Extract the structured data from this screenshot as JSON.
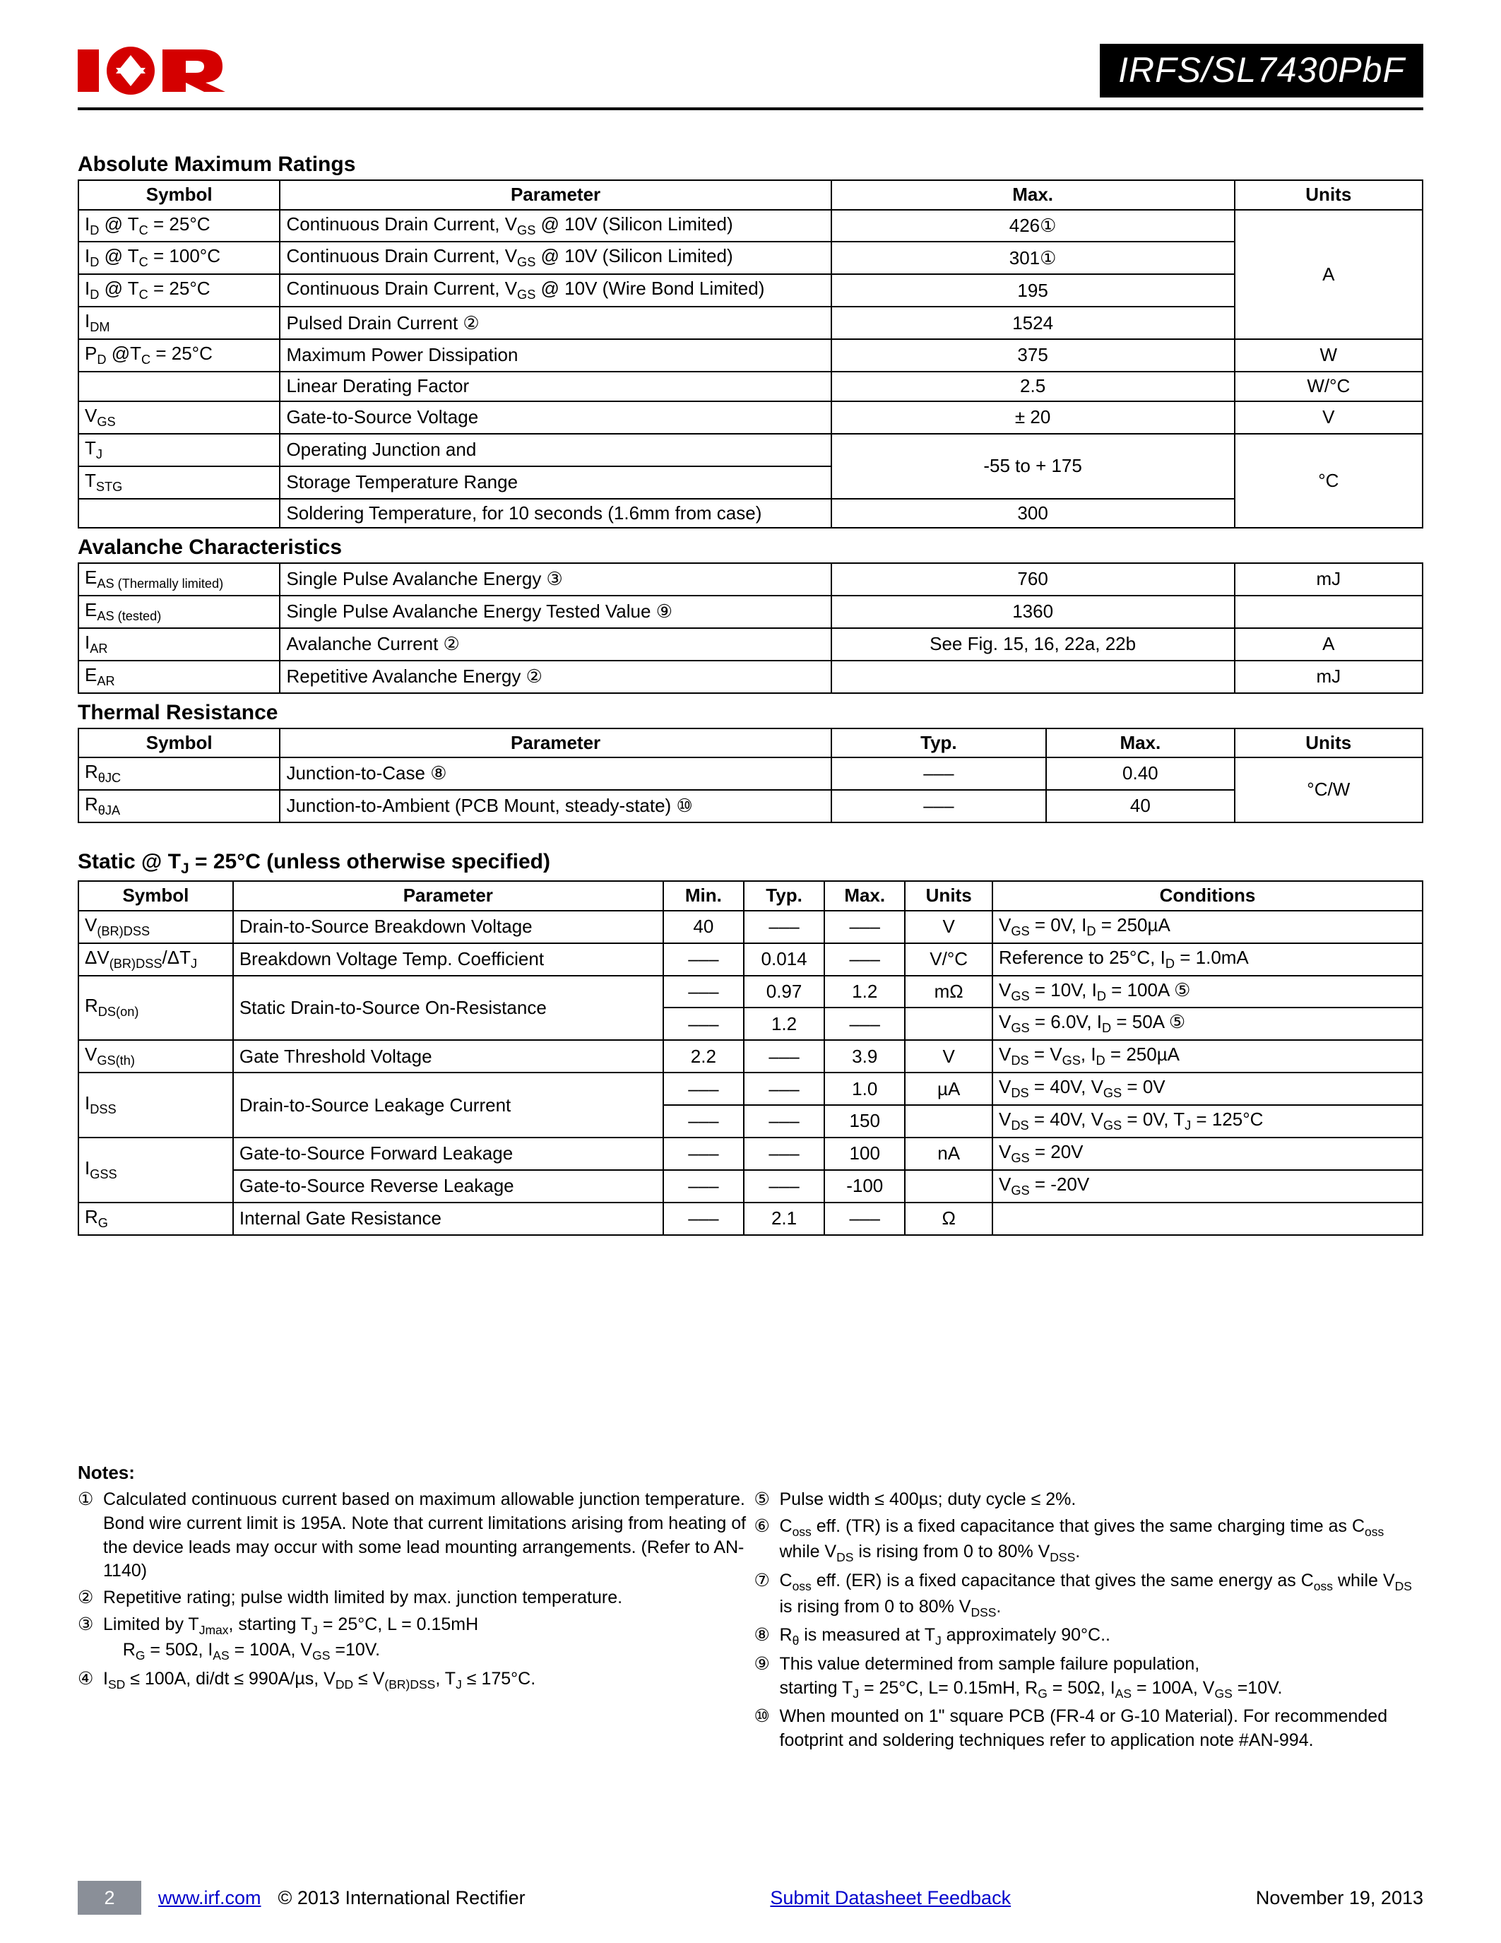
{
  "header": {
    "part_number": "IRFS/SL7430PbF",
    "logo_colors": {
      "red": "#d40000",
      "black": "#000000",
      "white": "#ffffff"
    }
  },
  "sections": {
    "abs_max": {
      "title": "Absolute Maximum Ratings",
      "columns": [
        "Symbol",
        "Parameter",
        "Max.",
        "Units"
      ],
      "rows": [
        {
          "symbol_html": "I<sub>D</sub> @ T<sub>C</sub> = 25°C",
          "param_html": "Continuous Drain Current, V<sub>GS</sub> @ 10V (Silicon Limited)",
          "max": "426①",
          "units": "A",
          "units_merge_start": true,
          "units_rowspan": 4
        },
        {
          "symbol_html": "I<sub>D</sub> @ T<sub>C</sub> = 100°C",
          "param_html": "Continuous Drain Current, V<sub>GS</sub> @ 10V (Silicon Limited)",
          "max": "301①"
        },
        {
          "symbol_html": "I<sub>D</sub> @ T<sub>C</sub> = 25°C",
          "param_html": "Continuous Drain Current, V<sub>GS</sub> @ 10V (Wire Bond Limited)",
          "max": "195"
        },
        {
          "symbol_html": "I<sub>DM</sub>",
          "param_html": "Pulsed Drain Current ②",
          "max": "1524"
        },
        {
          "symbol_html": "P<sub>D</sub> @T<sub>C</sub> = 25°C",
          "param_html": "Maximum Power Dissipation",
          "max": "375",
          "units": "W"
        },
        {
          "symbol_html": "",
          "param_html": "Linear Derating Factor",
          "max": "2.5",
          "units": "W/°C"
        },
        {
          "symbol_html": "V<sub>GS</sub>",
          "param_html": "Gate-to-Source Voltage",
          "max": "± 20",
          "units": "V"
        },
        {
          "symbol_html": "T<sub>J</sub>",
          "param_html": "Operating Junction and",
          "max": "-55  to + 175",
          "units": "°C",
          "units_merge_start": true,
          "units_rowspan": 3,
          "max_rowspan": 2
        },
        {
          "symbol_html": "T<sub>STG</sub>",
          "param_html": "Storage Temperature Range"
        },
        {
          "symbol_html": "",
          "param_html": "Soldering Temperature, for 10 seconds (1.6mm from case)",
          "max": "300"
        }
      ]
    },
    "avalanche": {
      "title": "Avalanche Characteristics",
      "rows": [
        {
          "symbol_html": "E<sub>AS (Thermally limited)</sub>",
          "param_html": "Single Pulse Avalanche Energy ③",
          "max": "760",
          "units": "mJ"
        },
        {
          "symbol_html": "E<sub>AS (tested)</sub>",
          "param_html": "Single Pulse Avalanche Energy Tested Value ⑨",
          "max": "1360",
          "units": ""
        },
        {
          "symbol_html": "I<sub>AR</sub>",
          "param_html": "Avalanche Current   ②",
          "max": "See Fig. 15, 16, 22a, 22b",
          "units": "A"
        },
        {
          "symbol_html": "E<sub>AR</sub>",
          "param_html": "Repetitive Avalanche Energy ②",
          "max": "",
          "units": "mJ"
        }
      ]
    },
    "thermal": {
      "title": "Thermal Resistance",
      "columns": [
        "Symbol",
        "Parameter",
        "Typ.",
        "Max.",
        "Units"
      ],
      "rows": [
        {
          "symbol_html": "R<sub>θJC</sub>",
          "param_html": "Junction-to-Case ⑧",
          "typ": "–––",
          "max": "0.40",
          "units": "°C/W",
          "units_rowspan": 2
        },
        {
          "symbol_html": "R<sub>θJA</sub>",
          "param_html": "Junction-to-Ambient (PCB Mount, steady-state) ⑩",
          "typ": "–––",
          "max": "40"
        }
      ]
    },
    "static": {
      "title_html": "Static @ T<sub>J</sub> = 25°C (unless otherwise specified)",
      "columns": [
        "Symbol",
        "Parameter",
        "Min.",
        "Typ.",
        "Max.",
        "Units",
        "Conditions"
      ],
      "rows": [
        {
          "symbol_html": "V<sub>(BR)DSS</sub>",
          "param": "Drain-to-Source Breakdown Voltage",
          "min": "40",
          "typ": "–––",
          "max": "–––",
          "units": "V",
          "cond_html": "V<sub>GS</sub> = 0V, I<sub>D</sub> = 250µA"
        },
        {
          "symbol_html": "ΔV<sub>(BR)DSS</sub>/ΔT<sub>J</sub>",
          "param": "Breakdown Voltage Temp. Coefficient",
          "min": "–––",
          "typ": "0.014",
          "max": "–––",
          "units": "V/°C",
          "cond_html": "Reference to 25°C, I<sub>D</sub> = 1.0mA"
        },
        {
          "symbol_html": "R<sub>DS(on)</sub>",
          "symbol_rowspan": 2,
          "param": "Static Drain-to-Source On-Resistance",
          "param_rowspan": 2,
          "min": "–––",
          "typ": "0.97",
          "max": "1.2",
          "units": "mΩ",
          "cond_html": "V<sub>GS</sub> = 10V, I<sub>D</sub> = 100A ⑤"
        },
        {
          "min": "–––",
          "typ": "1.2",
          "max": "–––",
          "units": "",
          "cond_html": "V<sub>GS</sub> = 6.0V, I<sub>D</sub> = 50A ⑤"
        },
        {
          "symbol_html": "V<sub>GS(th)</sub>",
          "param": "Gate Threshold Voltage",
          "min": "2.2",
          "typ": "–––",
          "max": "3.9",
          "units": "V",
          "cond_html": "V<sub>DS</sub> = V<sub>GS</sub>, I<sub>D</sub> = 250µA"
        },
        {
          "symbol_html": "I<sub>DSS</sub>",
          "symbol_rowspan": 2,
          "param": "Drain-to-Source Leakage Current",
          "param_rowspan": 2,
          "min": "–––",
          "typ": "–––",
          "max": "1.0",
          "units": "µA",
          "cond_html": "V<sub>DS</sub> = 40V, V<sub>GS</sub> = 0V"
        },
        {
          "min": "–––",
          "typ": "–––",
          "max": "150",
          "units": "",
          "cond_html": "V<sub>DS</sub> = 40V, V<sub>GS</sub> = 0V, T<sub>J</sub> = 125°C"
        },
        {
          "symbol_html": "I<sub>GSS</sub>",
          "symbol_rowspan": 2,
          "param": "Gate-to-Source Forward Leakage",
          "min": "–––",
          "typ": "–––",
          "max": "100",
          "units": "nA",
          "cond_html": "V<sub>GS</sub> = 20V"
        },
        {
          "param": "Gate-to-Source Reverse Leakage",
          "min": "–––",
          "typ": "–––",
          "max": "-100",
          "units": "",
          "cond_html": "V<sub>GS</sub> = -20V"
        },
        {
          "symbol_html": "R<sub>G</sub>",
          "param": "Internal Gate Resistance",
          "min": "–––",
          "typ": "2.1",
          "max": "–––",
          "units": "Ω",
          "cond_html": ""
        }
      ]
    }
  },
  "col_widths": {
    "abs_max": {
      "symbol": "15%",
      "param": "41%",
      "max": "30%",
      "units": "14%"
    },
    "avalanche": {
      "symbol": "15%",
      "param": "41%",
      "max": "30%",
      "units": "14%"
    },
    "thermal": {
      "symbol": "15%",
      "param": "41%",
      "typ": "16%",
      "max": "14%",
      "units": "14%"
    },
    "static": {
      "symbol": "11.5%",
      "param": "32%",
      "min": "6%",
      "typ": "6%",
      "max": "6%",
      "units": "6.5%",
      "cond": "32%"
    }
  },
  "notes": {
    "title": "Notes:",
    "left": [
      {
        "num": "①",
        "html": "Calculated continuous current based on maximum allowable junction temperature. Bond wire current limit is 195A. Note that current limitations arising from heating of the device leads may occur with some lead mounting arrangements. (Refer to AN-1140)"
      },
      {
        "num": "②",
        "html": "Repetitive rating;  pulse width limited by max. junction temperature."
      },
      {
        "num": "③",
        "html": "Limited by T<sub>Jmax</sub>, starting T<sub>J</sub> = 25°C, L = 0.15mH<br>&nbsp;&nbsp;&nbsp;&nbsp;R<sub>G</sub> = 50Ω, I<sub>AS</sub> = 100A, V<sub>GS</sub> =10V."
      },
      {
        "num": "④",
        "html": "I<sub>SD</sub> ≤ 100A, di/dt ≤ 990A/µs, V<sub>DD</sub> ≤ V<sub>(BR)DSS</sub>, T<sub>J</sub> ≤ 175°C."
      }
    ],
    "right": [
      {
        "num": "⑤",
        "html": "Pulse width ≤ 400µs; duty cycle ≤ 2%."
      },
      {
        "num": "⑥",
        "html": "C<sub>oss</sub> eff. (TR) is a fixed capacitance that gives the same charging time as C<sub>oss</sub> while V<sub>DS</sub> is rising from 0 to 80% V<sub>DSS</sub>."
      },
      {
        "num": "⑦",
        "html": "C<sub>oss</sub> eff. (ER) is a fixed capacitance that gives the same energy as C<sub>oss</sub> while V<sub>DS</sub> is rising from 0 to 80% V<sub>DSS</sub>."
      },
      {
        "num": "⑧",
        "html": "R<sub>θ</sub> is measured at T<sub>J</sub> approximately 90°C.."
      },
      {
        "num": "⑨",
        "html": "This value determined from sample failure population,<br>starting T<sub>J</sub> = 25°C, L= 0.15mH, R<sub>G</sub> = 50Ω, I<sub>AS</sub> = 100A, V<sub>GS</sub> =10V."
      },
      {
        "num": "⑩",
        "html": "When mounted on 1\" square PCB (FR-4 or G-10 Material).  For recommended footprint and soldering techniques refer to application note #AN-994."
      }
    ]
  },
  "footer": {
    "page": "2",
    "url_text": "www.irf.com",
    "copyright": "© 2013 International Rectifier",
    "feedback": "Submit Datasheet Feedback",
    "date": "November 19, 2013"
  }
}
